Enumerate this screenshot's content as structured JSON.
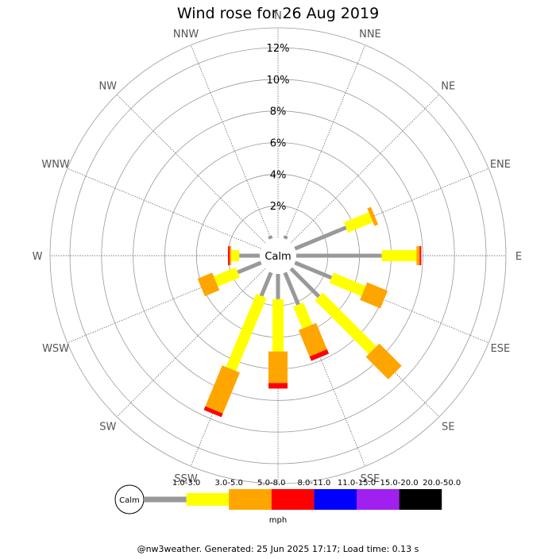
{
  "chart_data": {
    "type": "wind-rose",
    "title": "Wind rose for 26 Aug 2019",
    "calm_label": "Calm",
    "unit_label": "mph",
    "footer": "@nw3weather. Generated: 25 Jun 2025 17:17; Load time: 0.13 s",
    "radial_max": 12,
    "radial_ticks": [
      2,
      4,
      6,
      8,
      10,
      12
    ],
    "radial_tick_labels": [
      "2%",
      "4%",
      "6%",
      "8%",
      "10%",
      "12%"
    ],
    "directions": [
      "N",
      "NNE",
      "NE",
      "ENE",
      "E",
      "ESE",
      "SE",
      "SSE",
      "S",
      "SSW",
      "SW",
      "WSW",
      "W",
      "WNW",
      "NW",
      "NNW"
    ],
    "speed_bins": [
      {
        "label": "1.0-3.0",
        "color": "#999999"
      },
      {
        "label": "3.0-5.0",
        "color": "#ffff00"
      },
      {
        "label": "5.0-8.0",
        "color": "#ffa500"
      },
      {
        "label": "8.0-11.0",
        "color": "#ff0000"
      },
      {
        "label": "11.0-15.0",
        "color": "#0000ff"
      },
      {
        "label": "15.0-20.0",
        "color": "#a020f0"
      },
      {
        "label": "20.0-50.0",
        "color": "#000000"
      }
    ],
    "frequencies": [
      [
        0.0,
        0.0,
        0.0,
        0.0,
        0.0,
        0.0,
        0.0
      ],
      [
        0.2,
        0.0,
        0.0,
        0.0,
        0.0,
        0.0,
        0.0
      ],
      [
        0.0,
        0.0,
        0.0,
        0.0,
        0.0,
        0.0,
        0.0
      ],
      [
        3.5,
        1.7,
        0.25,
        0.0,
        0.0,
        0.0,
        0.0
      ],
      [
        5.4,
        2.2,
        0.2,
        0.1,
        0.0,
        0.0,
        0.0
      ],
      [
        2.5,
        2.2,
        1.4,
        0.0,
        0.0,
        0.0,
        0.0
      ],
      [
        2.5,
        4.8,
        2.0,
        0.0,
        0.0,
        0.0,
        0.0
      ],
      [
        2.2,
        1.5,
        1.8,
        0.3,
        0.0,
        0.0,
        0.0
      ],
      [
        1.6,
        3.3,
        2.0,
        0.35,
        0.0,
        0.0,
        0.0
      ],
      [
        1.6,
        5.0,
        2.8,
        0.25,
        0.0,
        0.0,
        0.0
      ],
      [
        0.0,
        0.0,
        0.0,
        0.0,
        0.0,
        0.0,
        0.0
      ],
      [
        1.6,
        1.5,
        1.0,
        0.0,
        0.0,
        0.0,
        0.0
      ],
      [
        1.3,
        0.5,
        0.1,
        0.1,
        0.0,
        0.0,
        0.0
      ],
      [
        0.0,
        0.0,
        0.0,
        0.0,
        0.0,
        0.0,
        0.0
      ],
      [
        0.0,
        0.0,
        0.0,
        0.0,
        0.0,
        0.0,
        0.0
      ],
      [
        0.2,
        0.0,
        0.0,
        0.0,
        0.0,
        0.0,
        0.0
      ]
    ]
  }
}
